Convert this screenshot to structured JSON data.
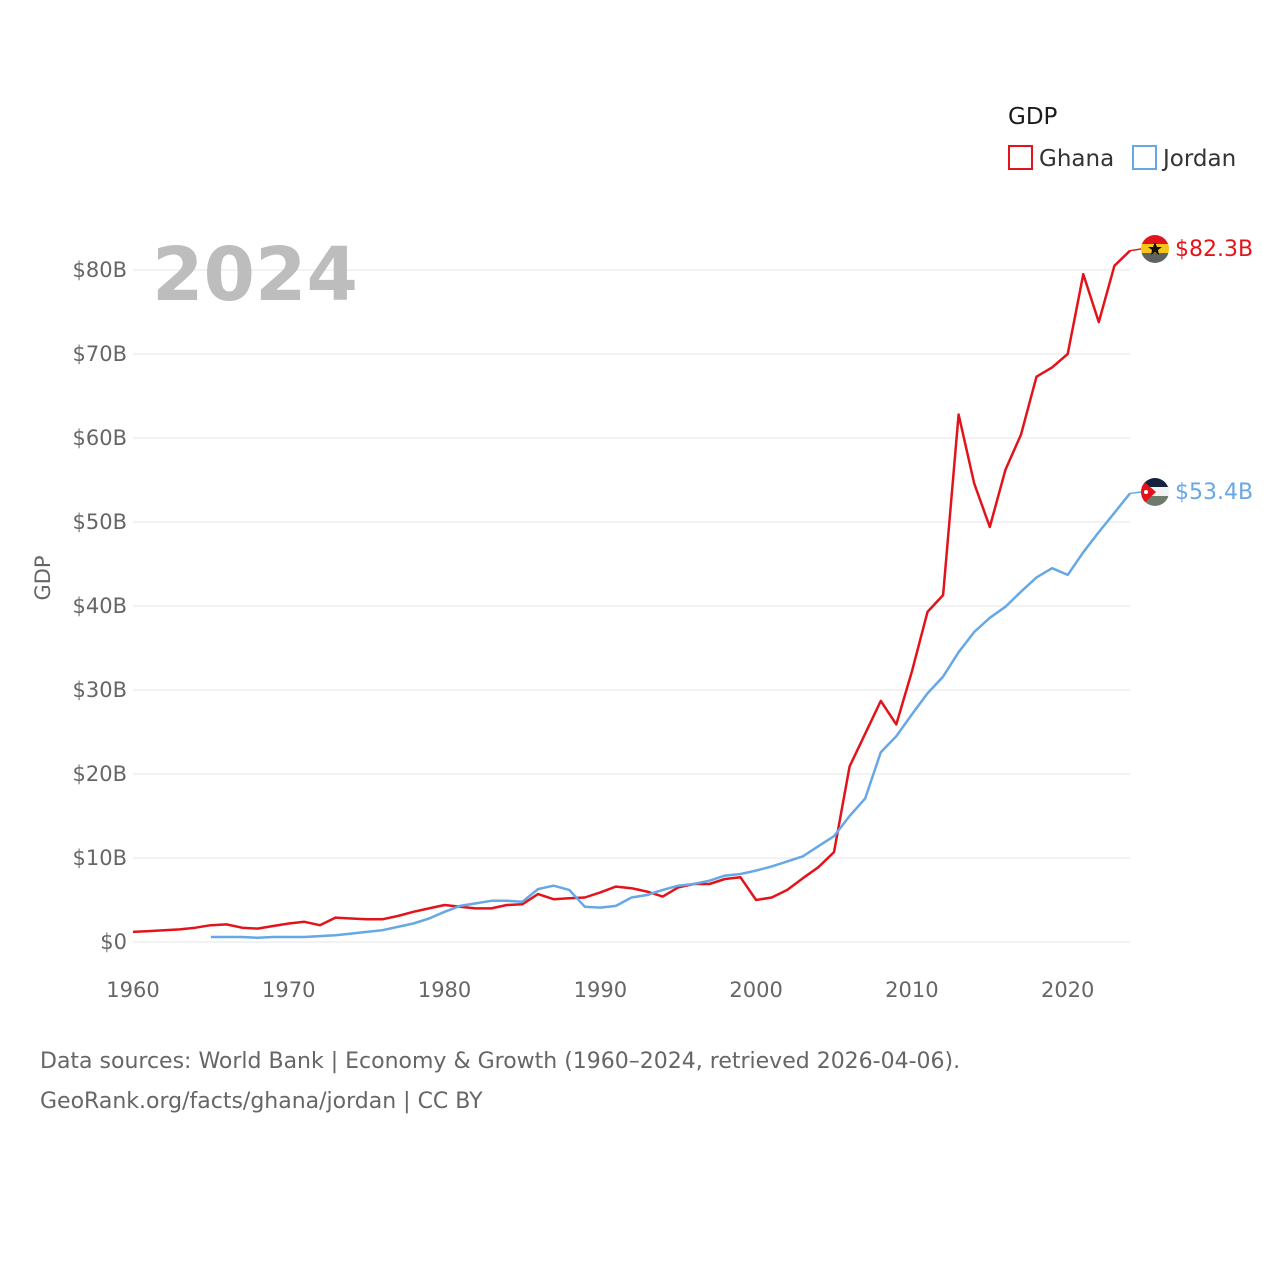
{
  "chart_data": {
    "type": "line",
    "title": "GDP",
    "legend_title": "GDP",
    "legend_position": "top-right",
    "year_label": "2024",
    "ylabel": "GDP",
    "xlabel": "",
    "xlim": [
      1960,
      2024
    ],
    "ylim": [
      0,
      85
    ],
    "y_ticks": [
      0,
      10,
      20,
      30,
      40,
      50,
      60,
      70,
      80
    ],
    "y_tick_labels": [
      "$0",
      "$10B",
      "$20B",
      "$30B",
      "$40B",
      "$50B",
      "$60B",
      "$70B",
      "$80B"
    ],
    "x_ticks": [
      1960,
      1970,
      1980,
      1990,
      2000,
      2010,
      2020
    ],
    "x_tick_labels": [
      "1960",
      "1970",
      "1980",
      "1990",
      "2000",
      "2010",
      "2020"
    ],
    "grid": true,
    "series": [
      {
        "name": "Ghana",
        "color": "#e3131b",
        "end_label": "$82.3B",
        "flag": "ghana-flag",
        "x": [
          1960,
          1961,
          1962,
          1963,
          1964,
          1965,
          1966,
          1967,
          1968,
          1969,
          1970,
          1971,
          1972,
          1973,
          1974,
          1975,
          1976,
          1977,
          1978,
          1979,
          1980,
          1981,
          1982,
          1983,
          1984,
          1985,
          1986,
          1987,
          1988,
          1989,
          1990,
          1991,
          1992,
          1993,
          1994,
          1995,
          1996,
          1997,
          1998,
          1999,
          2000,
          2001,
          2002,
          2003,
          2004,
          2005,
          2006,
          2007,
          2008,
          2009,
          2010,
          2011,
          2012,
          2013,
          2014,
          2015,
          2016,
          2017,
          2018,
          2019,
          2020,
          2021,
          2022,
          2023,
          2024
        ],
        "values": [
          1.2,
          1.3,
          1.4,
          1.5,
          1.7,
          2.0,
          2.1,
          1.7,
          1.6,
          1.9,
          2.2,
          2.4,
          2.0,
          2.9,
          2.8,
          2.7,
          2.7,
          3.1,
          3.6,
          4.0,
          4.4,
          4.2,
          4.0,
          4.0,
          4.4,
          4.5,
          5.7,
          5.1,
          5.2,
          5.3,
          5.9,
          6.6,
          6.4,
          6.0,
          5.4,
          6.5,
          6.9,
          6.9,
          7.5,
          7.7,
          5.0,
          5.3,
          6.2,
          7.6,
          8.9,
          10.7,
          20.9,
          24.8,
          28.7,
          25.9,
          32.2,
          39.3,
          41.3,
          62.8,
          54.6,
          49.4,
          56.2,
          60.4,
          67.3,
          68.4,
          70.0,
          79.5,
          73.8,
          80.5,
          82.3
        ]
      },
      {
        "name": "Jordan",
        "color": "#66a8e5",
        "end_label": "$53.4B",
        "flag": "jordan-flag",
        "x": [
          1965,
          1966,
          1967,
          1968,
          1969,
          1970,
          1971,
          1972,
          1973,
          1974,
          1975,
          1976,
          1977,
          1978,
          1979,
          1980,
          1981,
          1982,
          1983,
          1984,
          1985,
          1986,
          1987,
          1988,
          1989,
          1990,
          1991,
          1992,
          1993,
          1994,
          1995,
          1996,
          1997,
          1998,
          1999,
          2000,
          2001,
          2002,
          2003,
          2004,
          2005,
          2006,
          2007,
          2008,
          2009,
          2010,
          2011,
          2012,
          2013,
          2014,
          2015,
          2016,
          2017,
          2018,
          2019,
          2020,
          2021,
          2022,
          2023,
          2024
        ],
        "values": [
          0.6,
          0.6,
          0.6,
          0.5,
          0.6,
          0.6,
          0.6,
          0.7,
          0.8,
          1.0,
          1.2,
          1.4,
          1.8,
          2.2,
          2.8,
          3.6,
          4.3,
          4.6,
          4.9,
          4.9,
          4.8,
          6.3,
          6.7,
          6.2,
          4.2,
          4.1,
          4.3,
          5.3,
          5.6,
          6.2,
          6.7,
          6.9,
          7.3,
          7.9,
          8.1,
          8.5,
          9.0,
          9.6,
          10.2,
          11.4,
          12.6,
          15.0,
          17.1,
          22.6,
          24.5,
          27.1,
          29.6,
          31.6,
          34.5,
          36.9,
          38.6,
          39.9,
          41.7,
          43.4,
          44.5,
          43.7,
          46.4,
          48.8,
          51.1,
          53.4
        ]
      }
    ]
  },
  "footer": {
    "sources": "Data sources: World Bank | Economy & Growth (1960–2024, retrieved 2026-04-06).",
    "credit": "GeoRank.org/facts/ghana/jordan | CC BY"
  }
}
